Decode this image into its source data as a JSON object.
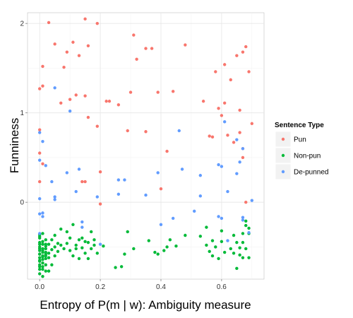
{
  "chart_data": {
    "type": "scatter",
    "xlabel": "Entropy of P(m | w): Ambiguity measure",
    "ylabel": "Funniness",
    "xlim": [
      -0.04,
      0.74
    ],
    "ylim": [
      -0.86,
      2.12
    ],
    "x_ticks": [
      0.0,
      0.2,
      0.4,
      0.6
    ],
    "x_tick_labels": [
      "0.0",
      "0.2",
      "0.4",
      "0.6"
    ],
    "y_ticks": [
      0,
      1,
      2
    ],
    "y_tick_labels": [
      "0",
      "1",
      "2"
    ],
    "grid": true,
    "legend": {
      "title": "Sentence Type",
      "position": "right"
    },
    "series": [
      {
        "name": "Pun",
        "color": "#F8766D",
        "points": [
          [
            0.0,
            1.27
          ],
          [
            0.01,
            1.3
          ],
          [
            0.03,
            2.01
          ],
          [
            0.05,
            1.77
          ],
          [
            0.01,
            1.52
          ],
          [
            0.08,
            1.51
          ],
          [
            0.09,
            1.68
          ],
          [
            0.11,
            1.79
          ],
          [
            0.13,
            1.64
          ],
          [
            0.15,
            2.05
          ],
          [
            0.16,
            1.75
          ],
          [
            0.19,
            2.0
          ],
          [
            0.12,
            1.2
          ],
          [
            0.1,
            1.15
          ],
          [
            0.07,
            1.11
          ],
          [
            0.15,
            1.19
          ],
          [
            0.16,
            0.95
          ],
          [
            0.19,
            0.85
          ],
          [
            0.22,
            1.13
          ],
          [
            0.23,
            1.13
          ],
          [
            0.26,
            1.09
          ],
          [
            0.31,
            1.87
          ],
          [
            0.32,
            1.6
          ],
          [
            0.35,
            1.72
          ],
          [
            0.37,
            1.72
          ],
          [
            0.39,
            1.23
          ],
          [
            0.44,
            1.24
          ],
          [
            0.48,
            1.76
          ],
          [
            0.3,
            1.23
          ],
          [
            0.29,
            0.8
          ],
          [
            0.35,
            0.79
          ],
          [
            0.42,
            0.57
          ],
          [
            0.4,
            0.15
          ],
          [
            0.0,
            0.81
          ],
          [
            0.0,
            0.55
          ],
          [
            0.01,
            0.43
          ],
          [
            0.0,
            0.23
          ],
          [
            0.14,
            0.23
          ],
          [
            0.15,
            0.23
          ],
          [
            0.2,
            0.34
          ],
          [
            0.2,
            -0.02
          ],
          [
            0.54,
            1.13
          ],
          [
            0.56,
            0.74
          ],
          [
            0.57,
            0.73
          ],
          [
            0.59,
            1.05
          ],
          [
            0.6,
            0.97
          ],
          [
            0.61,
            1.54
          ],
          [
            0.63,
            1.37
          ],
          [
            0.65,
            1.64
          ],
          [
            0.66,
            1.03
          ],
          [
            0.67,
            1.68
          ],
          [
            0.68,
            1.74
          ],
          [
            0.69,
            1.46
          ],
          [
            0.64,
            0.67
          ],
          [
            0.66,
            0.78
          ],
          [
            0.67,
            0.6
          ],
          [
            0.67,
            0.5
          ],
          [
            0.58,
            1.46
          ],
          [
            0.62,
            0.75
          ],
          [
            0.61,
            1.11
          ],
          [
            0.68,
            0.0
          ],
          [
            0.7,
            0.88
          ]
        ]
      },
      {
        "name": "Non-pun",
        "color": "#00BA38",
        "points": [
          [
            0.0,
            -0.38
          ],
          [
            0.0,
            -0.45
          ],
          [
            0.0,
            -0.52
          ],
          [
            0.0,
            -0.58
          ],
          [
            0.0,
            -0.65
          ],
          [
            0.0,
            -0.72
          ],
          [
            0.0,
            -0.8
          ],
          [
            0.01,
            -0.47
          ],
          [
            0.01,
            -0.54
          ],
          [
            0.01,
            -0.61
          ],
          [
            0.01,
            -0.68
          ],
          [
            0.01,
            -0.75
          ],
          [
            0.01,
            -0.83
          ],
          [
            0.02,
            -0.42
          ],
          [
            0.02,
            -0.49
          ],
          [
            0.02,
            -0.56
          ],
          [
            0.02,
            -0.63
          ],
          [
            0.02,
            -0.7
          ],
          [
            0.02,
            -0.77
          ],
          [
            0.0,
            -0.58
          ],
          [
            0.0,
            -0.62
          ],
          [
            0.0,
            -0.66
          ],
          [
            0.01,
            -0.6
          ],
          [
            0.01,
            -0.64
          ],
          [
            0.01,
            -0.56
          ],
          [
            0.02,
            -0.6
          ],
          [
            0.02,
            -0.52
          ],
          [
            0.0,
            -0.36
          ],
          [
            0.0,
            -0.4
          ],
          [
            0.01,
            -0.44
          ],
          [
            0.0,
            -0.7
          ],
          [
            0.0,
            -0.75
          ],
          [
            0.01,
            -0.72
          ],
          [
            0.0,
            -0.5
          ],
          [
            0.01,
            -0.52
          ],
          [
            0.02,
            -0.47
          ],
          [
            0.01,
            -0.35
          ],
          [
            0.02,
            -0.58
          ],
          [
            0.0,
            -0.54
          ],
          [
            0.0,
            -0.47
          ],
          [
            0.03,
            -0.47
          ],
          [
            0.03,
            -0.62
          ],
          [
            0.04,
            -0.53
          ],
          [
            0.04,
            -0.42
          ],
          [
            0.05,
            -0.5
          ],
          [
            0.05,
            -0.37
          ],
          [
            0.05,
            -0.6
          ],
          [
            0.06,
            -0.46
          ],
          [
            0.06,
            -0.55
          ],
          [
            0.07,
            -0.48
          ],
          [
            0.08,
            -0.52
          ],
          [
            0.09,
            -0.46
          ],
          [
            0.1,
            -0.4
          ],
          [
            0.1,
            -0.54
          ],
          [
            0.11,
            -0.25
          ],
          [
            0.11,
            -0.6
          ],
          [
            0.12,
            -0.48
          ],
          [
            0.12,
            -0.52
          ],
          [
            0.13,
            -0.42
          ],
          [
            0.14,
            -0.4
          ],
          [
            0.14,
            -0.51
          ],
          [
            0.15,
            -0.57
          ],
          [
            0.15,
            -0.44
          ],
          [
            0.16,
            -0.63
          ],
          [
            0.16,
            -0.45
          ],
          [
            0.17,
            -0.52
          ],
          [
            0.18,
            -0.48
          ],
          [
            0.18,
            -0.42
          ],
          [
            0.19,
            -0.57
          ],
          [
            0.03,
            -0.77
          ],
          [
            0.04,
            -0.7
          ],
          [
            0.03,
            -0.57
          ],
          [
            0.09,
            -0.33
          ],
          [
            0.13,
            -0.63
          ],
          [
            0.07,
            -0.3
          ],
          [
            0.17,
            -0.33
          ],
          [
            0.21,
            -0.49
          ],
          [
            0.25,
            -0.73
          ],
          [
            0.27,
            -0.72
          ],
          [
            0.28,
            -0.58
          ],
          [
            0.29,
            -0.33
          ],
          [
            0.31,
            -0.52
          ],
          [
            0.36,
            -0.43
          ],
          [
            0.38,
            -0.56
          ],
          [
            0.39,
            -0.58
          ],
          [
            0.41,
            -0.54
          ],
          [
            0.42,
            -0.5
          ],
          [
            0.43,
            -0.42
          ],
          [
            0.45,
            -0.49
          ],
          [
            0.48,
            -0.37
          ],
          [
            0.53,
            -0.38
          ],
          [
            0.55,
            -0.28
          ],
          [
            0.55,
            -0.48
          ],
          [
            0.56,
            -0.55
          ],
          [
            0.57,
            -0.6
          ],
          [
            0.57,
            -0.43
          ],
          [
            0.58,
            -0.5
          ],
          [
            0.59,
            -0.63
          ],
          [
            0.6,
            -0.44
          ],
          [
            0.61,
            -0.56
          ],
          [
            0.63,
            -0.52
          ],
          [
            0.64,
            -0.37
          ],
          [
            0.65,
            -0.45
          ],
          [
            0.65,
            -0.74
          ],
          [
            0.66,
            -0.51
          ],
          [
            0.66,
            -0.59
          ],
          [
            0.67,
            -0.35
          ],
          [
            0.67,
            -0.62
          ],
          [
            0.67,
            -0.45
          ],
          [
            0.68,
            -0.21
          ],
          [
            0.68,
            -0.26
          ],
          [
            0.69,
            -0.29
          ],
          [
            0.69,
            -0.35
          ],
          [
            0.69,
            -0.62
          ],
          [
            0.68,
            -0.52
          ],
          [
            0.64,
            -0.57
          ],
          [
            0.6,
            -0.32
          ]
        ]
      },
      {
        "name": "De-punned",
        "color": "#619CFF",
        "points": [
          [
            0.05,
            1.28
          ],
          [
            0.1,
            1.02
          ],
          [
            0.0,
            0.78
          ],
          [
            0.01,
            0.68
          ],
          [
            0.0,
            0.47
          ],
          [
            0.02,
            0.41
          ],
          [
            0.04,
            0.23
          ],
          [
            0.0,
            0.04
          ],
          [
            0.05,
            0.06
          ],
          [
            0.05,
            0.03
          ],
          [
            0.09,
            0.33
          ],
          [
            0.13,
            0.37
          ],
          [
            0.0,
            -0.13
          ],
          [
            0.01,
            -0.12
          ],
          [
            0.01,
            -0.16
          ],
          [
            0.0,
            -0.35
          ],
          [
            0.14,
            -0.22
          ],
          [
            0.14,
            -0.28
          ],
          [
            0.19,
            0.06
          ],
          [
            0.2,
            -0.47
          ],
          [
            0.26,
            0.09
          ],
          [
            0.26,
            0.25
          ],
          [
            0.28,
            0.25
          ],
          [
            0.39,
            0.33
          ],
          [
            0.35,
            0.08
          ],
          [
            0.4,
            -0.25
          ],
          [
            0.44,
            -0.18
          ],
          [
            0.46,
            0.8
          ],
          [
            0.47,
            0.37
          ],
          [
            0.51,
            -0.1
          ],
          [
            0.53,
            0.3
          ],
          [
            0.59,
            0.42
          ],
          [
            0.6,
            0.4
          ],
          [
            0.61,
            0.9
          ],
          [
            0.62,
            0.12
          ],
          [
            0.62,
            -0.43
          ],
          [
            0.65,
            0.32
          ],
          [
            0.65,
            0.7
          ],
          [
            0.66,
            0.45
          ],
          [
            0.67,
            -0.17
          ],
          [
            0.67,
            -0.2
          ],
          [
            0.69,
            -0.34
          ],
          [
            0.7,
            0.02
          ],
          [
            0.67,
            0.6
          ],
          [
            0.59,
            -0.16
          ],
          [
            0.6,
            -0.18
          ],
          [
            0.53,
            0.07
          ],
          [
            0.12,
            0.12
          ]
        ]
      }
    ]
  }
}
